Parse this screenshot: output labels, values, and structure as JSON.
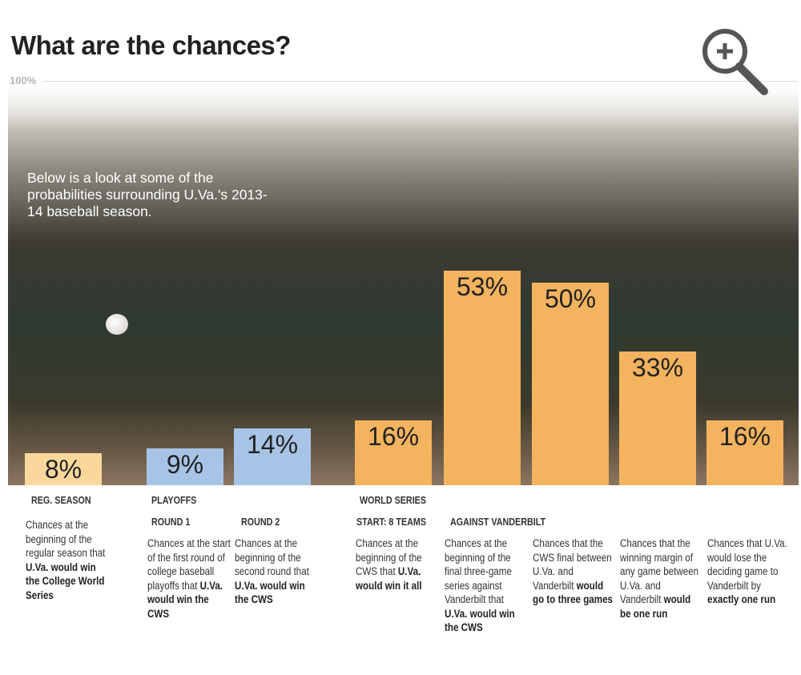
{
  "chart_data": {
    "type": "bar",
    "title": "What are the chances?",
    "ylim": [
      0,
      100
    ],
    "y_tick_label": "100%",
    "intro": "Below is a look at some of the probabilities surrounding U.Va.'s 2013-14 baseball season.",
    "colors": {
      "reg_season": "#fad89c",
      "playoffs": "#a7c4e6",
      "world_series": "#f3b35f"
    },
    "values": [
      8,
      9,
      14,
      16,
      53,
      50,
      33,
      16
    ],
    "value_labels": [
      "8%",
      "9%",
      "14%",
      "16%",
      "53%",
      "50%",
      "33%",
      "16%"
    ],
    "groups": [
      "reg_season",
      "playoffs",
      "playoffs",
      "world_series",
      "world_series",
      "world_series",
      "world_series",
      "world_series"
    ],
    "headers": {
      "reg_season": "REG. SEASON",
      "playoffs": "PLAYOFFS",
      "world_series": "WORLD SERIES",
      "round1": "ROUND 1",
      "round2": "ROUND 2",
      "start": "START: 8 TEAMS",
      "against": "AGAINST VANDERBILT"
    },
    "descriptions": [
      {
        "plain": "Chances at the beginning of the regular season that ",
        "bold": "U.Va. would win the College World Series"
      },
      {
        "plain": "Chances at the start of the first round of college baseball playoffs that ",
        "bold": "U.Va. would win the CWS"
      },
      {
        "plain": "Chances at the beginning of the second round that ",
        "bold": "U.Va. would win the CWS"
      },
      {
        "plain": "Chances at the beginning of the CWS that ",
        "bold": "U.Va. would win it all"
      },
      {
        "plain": "Chances at the beginning of the final three-game series against Vanderbilt that ",
        "bold": "U.Va. would win the CWS"
      },
      {
        "plain": "Chances that the CWS final between U.Va. and Vanderbilt ",
        "bold": "would go to three games"
      },
      {
        "plain": "Chances that the winning margin of any game between U.Va. and Vanderbilt ",
        "bold": "would be one run"
      },
      {
        "plain": "Chances that U.Va. would lose the deciding game to Vanderbilt by ",
        "bold": "exactly one run"
      }
    ]
  },
  "icons": {
    "zoom": "zoom-in-magnifier-icon"
  }
}
